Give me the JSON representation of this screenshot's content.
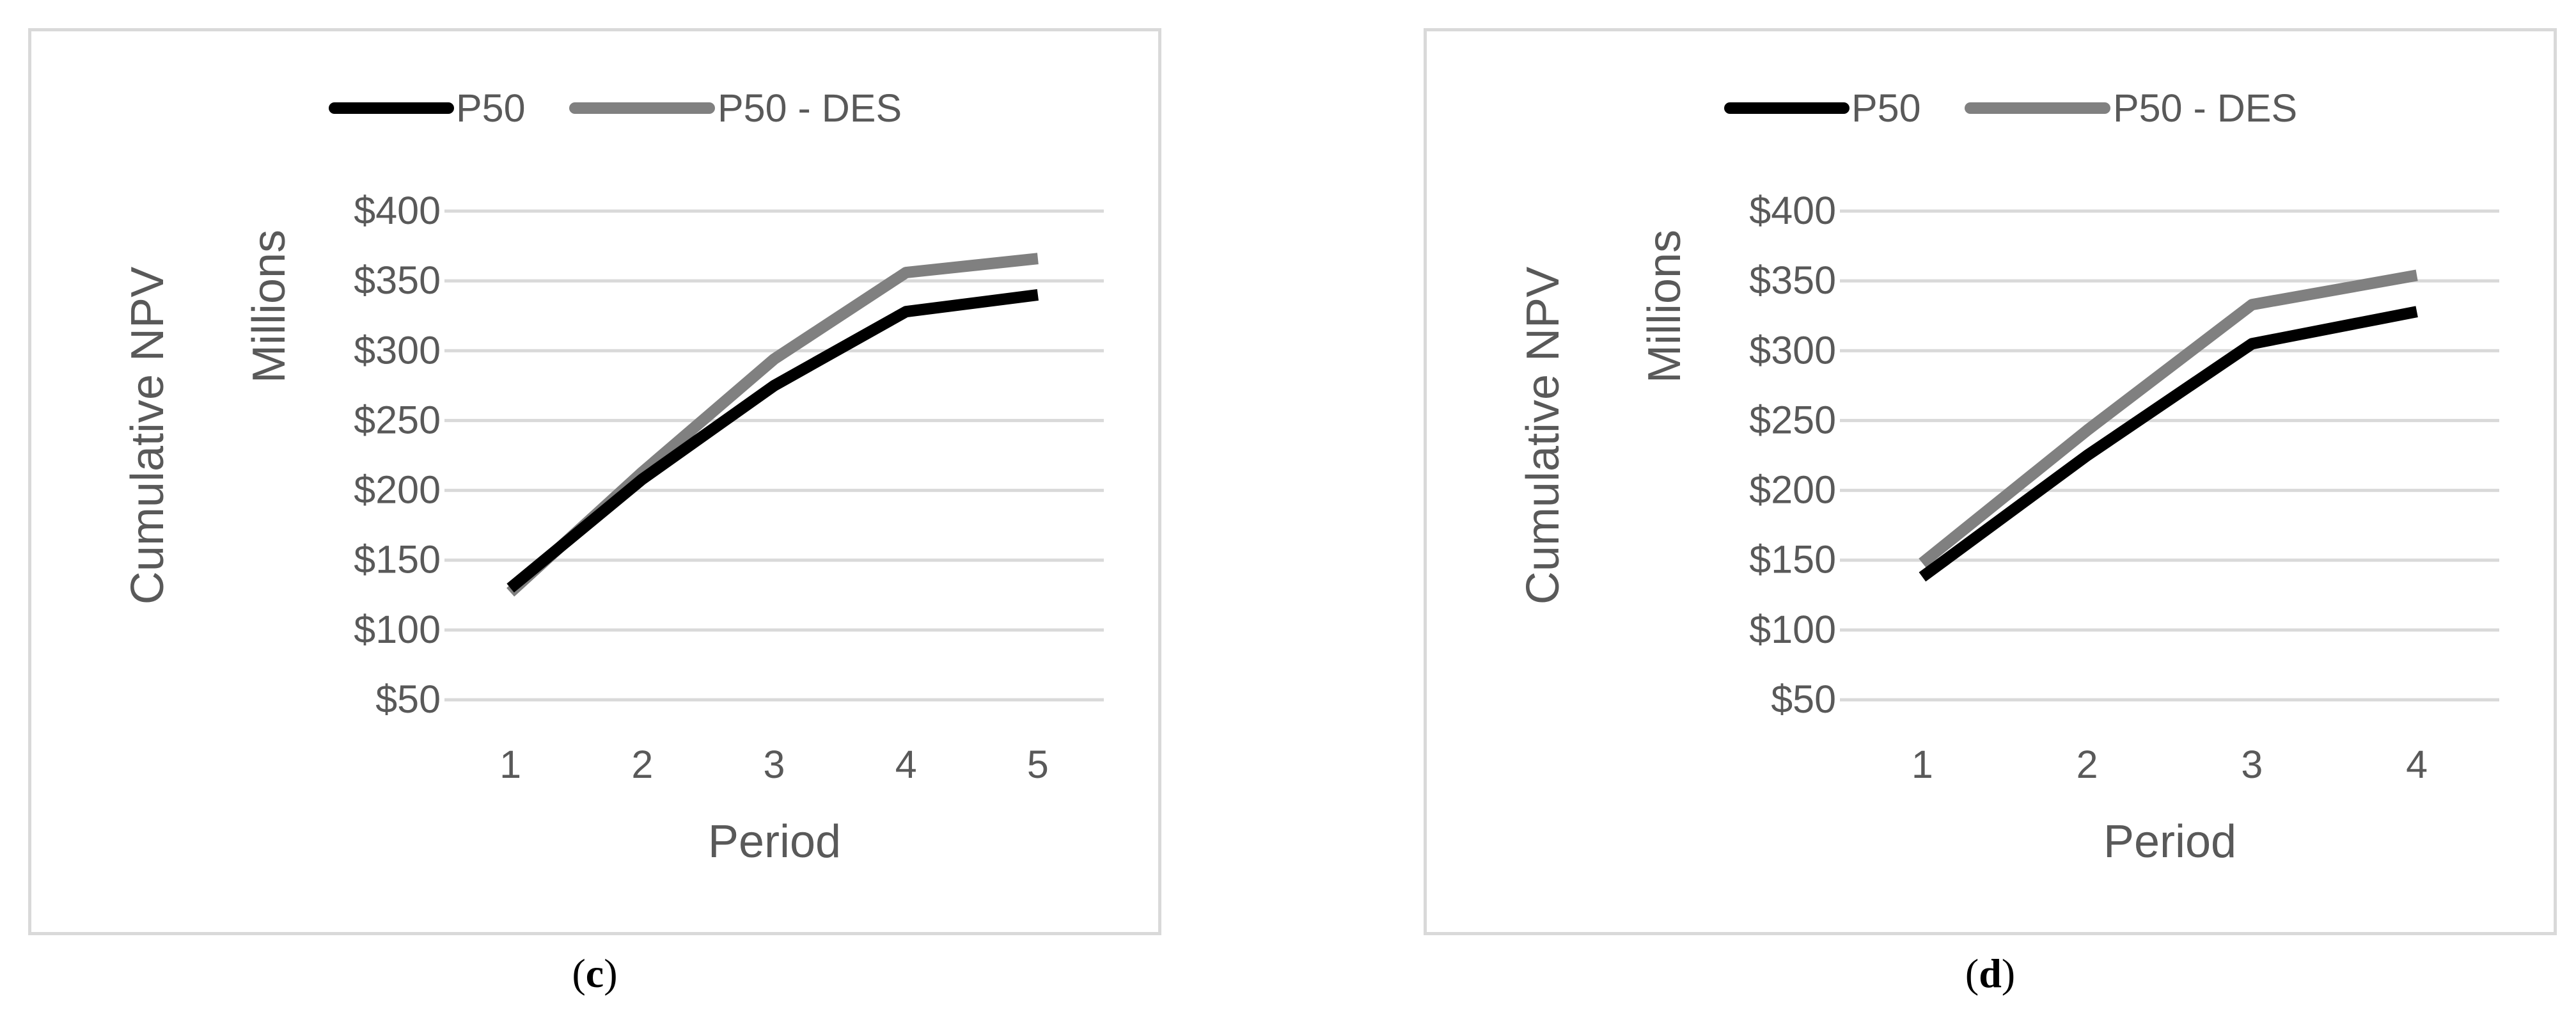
{
  "chart_data": [
    {
      "type": "line",
      "x": [
        1,
        2,
        3,
        4,
        5
      ],
      "series": [
        {
          "name": "P50",
          "color": "#000000",
          "values": [
            130,
            208,
            275,
            328,
            340
          ]
        },
        {
          "name": "P50 - DES",
          "color": "#808080",
          "values": [
            127,
            213,
            294,
            356,
            366
          ]
        }
      ],
      "xlabel": "Period",
      "ylabel": "Cumulative NPV",
      "yunit": "Millions",
      "ylim": [
        50,
        400
      ],
      "yticks": [
        "$50",
        "$100",
        "$150",
        "$200",
        "$250",
        "$300",
        "$350",
        "$400"
      ],
      "grid": true,
      "legend": "top"
    },
    {
      "type": "line",
      "x": [
        1,
        2,
        3,
        4
      ],
      "series": [
        {
          "name": "P50",
          "color": "#000000",
          "values": [
            138,
            225,
            305,
            328
          ]
        },
        {
          "name": "P50 - DES",
          "color": "#808080",
          "values": [
            148,
            243,
            333,
            354
          ]
        }
      ],
      "xlabel": "Period",
      "ylabel": "Cumulative NPV",
      "yunit": "Millions",
      "ylim": [
        50,
        400
      ],
      "yticks": [
        "$50",
        "$100",
        "$150",
        "$200",
        "$250",
        "$300",
        "$350",
        "$400"
      ],
      "grid": true,
      "legend": "top"
    }
  ],
  "captions": [
    "c",
    "d"
  ]
}
